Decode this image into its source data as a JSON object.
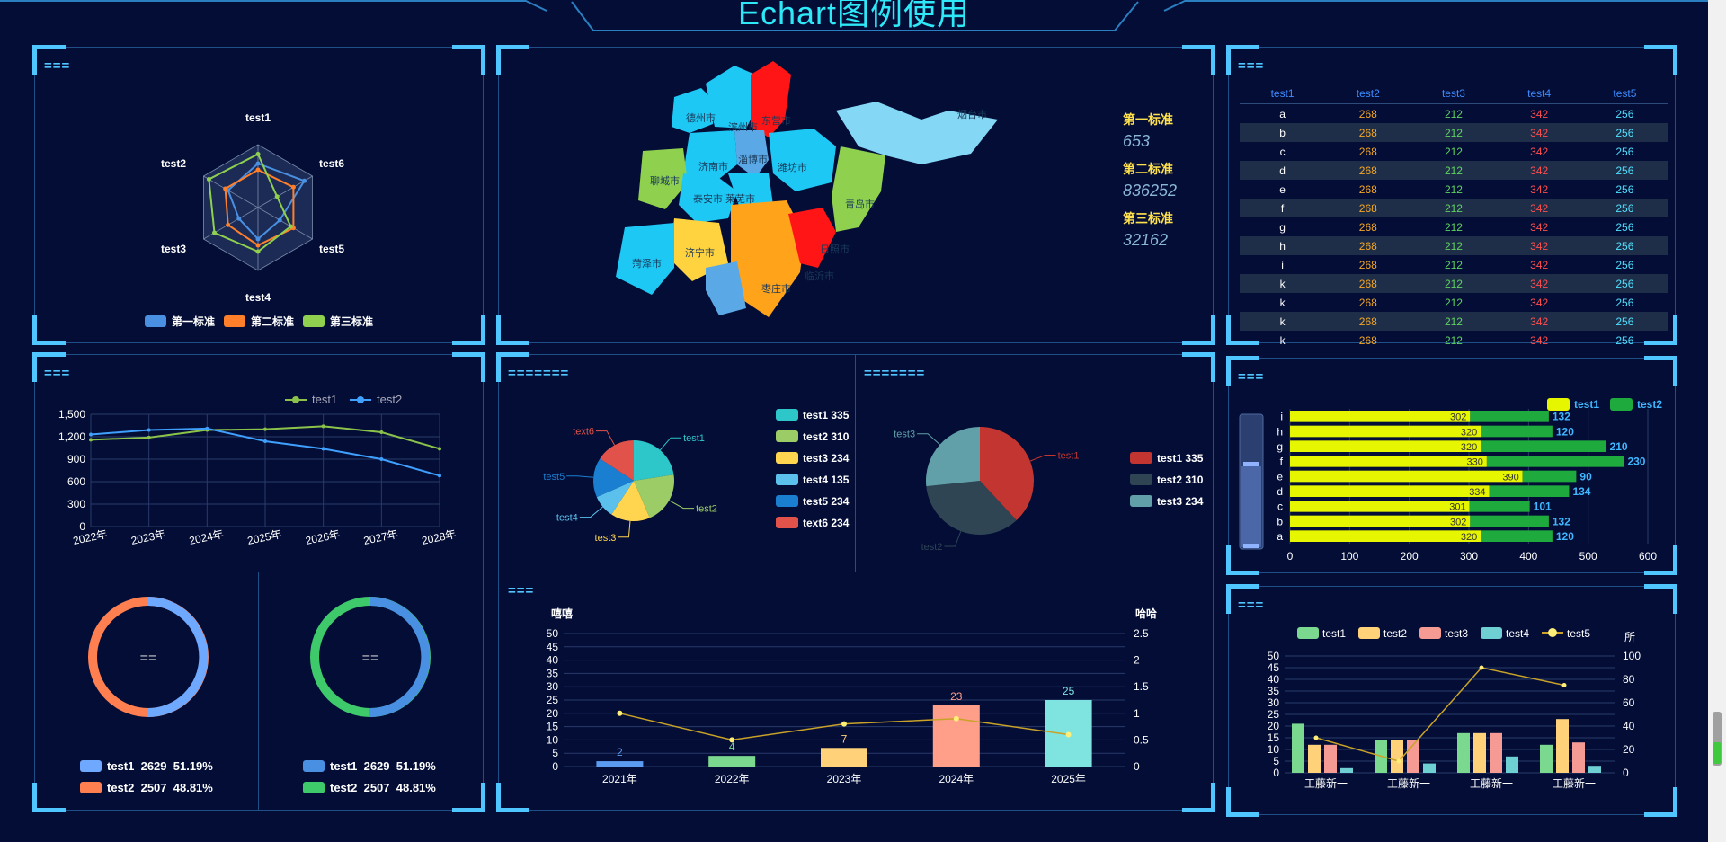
{
  "header": {
    "title": "Echart图例使用"
  },
  "panels": {
    "radar": {
      "title": "===",
      "indicators": [
        "test1",
        "test6",
        "test5",
        "test4",
        "test3",
        "test2"
      ],
      "legend": [
        {
          "name": "第一标准",
          "color": "#4a90e2"
        },
        {
          "name": "第二标准",
          "color": "#ff7f2a"
        },
        {
          "name": "第三标准",
          "color": "#8fd14f"
        }
      ],
      "series": [
        [
          0.7,
          0.85,
          0.4,
          0.5,
          0.35,
          0.55
        ],
        [
          0.6,
          0.65,
          0.65,
          0.6,
          0.55,
          0.6
        ],
        [
          0.85,
          0.35,
          0.6,
          0.7,
          0.8,
          0.9
        ]
      ]
    },
    "map": {
      "legend": [
        {
          "label": "第一标准",
          "value": "653"
        },
        {
          "label": "第二标准",
          "value": "836252"
        },
        {
          "label": "第三标准",
          "value": "32162"
        }
      ],
      "cities": [
        "德州市",
        "滨州市",
        "东营市",
        "淄博市",
        "潍坊市",
        "济南市",
        "聊城市",
        "泰安市",
        "莱芜市",
        "青岛市",
        "济宁市",
        "菏泽市",
        "临沂市",
        "日照市",
        "枣庄市",
        "烟台市"
      ]
    },
    "table": {
      "title": "===",
      "headers": [
        "test1",
        "test2",
        "test3",
        "test4",
        "test5"
      ],
      "rows": [
        [
          "a",
          "268",
          "212",
          "342",
          "256"
        ],
        [
          "b",
          "268",
          "212",
          "342",
          "256"
        ],
        [
          "c",
          "268",
          "212",
          "342",
          "256"
        ],
        [
          "d",
          "268",
          "212",
          "342",
          "256"
        ],
        [
          "e",
          "268",
          "212",
          "342",
          "256"
        ],
        [
          "f",
          "268",
          "212",
          "342",
          "256"
        ],
        [
          "g",
          "268",
          "212",
          "342",
          "256"
        ],
        [
          "h",
          "268",
          "212",
          "342",
          "256"
        ],
        [
          "i",
          "268",
          "212",
          "342",
          "256"
        ],
        [
          "k",
          "268",
          "212",
          "342",
          "256"
        ],
        [
          "k",
          "268",
          "212",
          "342",
          "256"
        ],
        [
          "k",
          "268",
          "212",
          "342",
          "256"
        ],
        [
          "k",
          "268",
          "212",
          "342",
          "256"
        ]
      ]
    },
    "line": {
      "title": "==="
    },
    "pies": {
      "title": "=======",
      "title2": "======="
    },
    "donuts": [
      {
        "center": "==",
        "items": [
          {
            "name": "test1",
            "value": "2629",
            "pct": "51.19%",
            "color": "#6ea8ff"
          },
          {
            "name": "test2",
            "value": "2507",
            "pct": "48.81%",
            "color": "#ff7f50"
          }
        ]
      },
      {
        "center": "==",
        "items": [
          {
            "name": "test1",
            "value": "2629",
            "pct": "51.19%",
            "color": "#4a90e2"
          },
          {
            "name": "test2",
            "value": "2507",
            "pct": "48.81%",
            "color": "#3ec96b"
          }
        ]
      }
    ],
    "bar": {
      "title": "===",
      "ylabel_left": "嘻嘻",
      "ylabel_right": "哈哈"
    },
    "hbar": {
      "title": "==="
    },
    "multibar": {
      "title": "===",
      "unit": "所"
    }
  },
  "chart_data": [
    {
      "type": "radar",
      "indicators": [
        "test1",
        "test6",
        "test5",
        "test4",
        "test3",
        "test2"
      ],
      "series": [
        {
          "name": "第一标准",
          "values": [
            0.7,
            0.85,
            0.4,
            0.5,
            0.35,
            0.55
          ]
        },
        {
          "name": "第二标准",
          "values": [
            0.6,
            0.65,
            0.65,
            0.6,
            0.55,
            0.6
          ]
        },
        {
          "name": "第三标准",
          "values": [
            0.85,
            0.35,
            0.6,
            0.7,
            0.8,
            0.9
          ]
        }
      ]
    },
    {
      "type": "line",
      "categories": [
        "2022年",
        "2023年",
        "2024年",
        "2025年",
        "2026年",
        "2027年",
        "2028年"
      ],
      "ylim": [
        0,
        1500
      ],
      "yticks": [
        0,
        300,
        600,
        900,
        1200,
        1500
      ],
      "series": [
        {
          "name": "test1",
          "color": "#8bc34a",
          "values": [
            1160,
            1190,
            1290,
            1300,
            1340,
            1260,
            1040
          ]
        },
        {
          "name": "test2",
          "color": "#3fa0ff",
          "values": [
            1230,
            1290,
            1310,
            1140,
            1040,
            900,
            680
          ]
        }
      ]
    },
    {
      "type": "pie",
      "series": [
        {
          "name": "test1",
          "value": 335,
          "color": "#2ec7c9"
        },
        {
          "name": "test2",
          "value": 310,
          "color": "#9ccc65"
        },
        {
          "name": "test3",
          "value": 234,
          "color": "#ffd54f"
        },
        {
          "name": "test4",
          "value": 135,
          "color": "#5bc0eb"
        },
        {
          "name": "test5",
          "value": 234,
          "color": "#1a7fd1"
        },
        {
          "name": "text6",
          "value": 234,
          "color": "#e0524a"
        }
      ]
    },
    {
      "type": "pie",
      "series": [
        {
          "name": "test1",
          "value": 335,
          "color": "#c23531"
        },
        {
          "name": "test2",
          "value": 310,
          "color": "#2f4554"
        },
        {
          "name": "test3",
          "value": 234,
          "color": "#61a0a8"
        }
      ]
    },
    {
      "type": "bar",
      "categories": [
        "2021年",
        "2022年",
        "2023年",
        "2024年",
        "2025年"
      ],
      "ylim": [
        0,
        50
      ],
      "y2lim": [
        0,
        2.5
      ],
      "series": [
        {
          "name": "bar",
          "values": [
            2,
            4,
            7,
            23,
            25
          ],
          "colors": [
            "#5b9bf0",
            "#7bd88f",
            "#ffd27a",
            "#ff9f8a",
            "#7fe3e0"
          ]
        },
        {
          "name": "line",
          "values": [
            1,
            0.5,
            0.8,
            0.9,
            0.6
          ],
          "color": "#c9a227"
        }
      ]
    },
    {
      "type": "bar",
      "orientation": "horizontal",
      "categories": [
        "a",
        "b",
        "c",
        "d",
        "e",
        "f",
        "g",
        "h",
        "i"
      ],
      "xlim": [
        0,
        600
      ],
      "series": [
        {
          "name": "test1",
          "color": "#e6f500",
          "values": [
            320,
            302,
            301,
            334,
            390,
            330,
            320,
            320,
            302
          ]
        },
        {
          "name": "test2",
          "color": "#1faa3e",
          "values": [
            120,
            132,
            101,
            134,
            90,
            230,
            210,
            120,
            132
          ]
        }
      ]
    },
    {
      "type": "bar",
      "categories": [
        "工藤新一",
        "工藤新一",
        "工藤新一",
        "工藤新一"
      ],
      "ylim": [
        0,
        50
      ],
      "y2lim": [
        0,
        100
      ],
      "series": [
        {
          "name": "test1",
          "color": "#7bd88f",
          "values": [
            21,
            14,
            17,
            12
          ]
        },
        {
          "name": "test2",
          "color": "#ffd27a",
          "values": [
            12,
            14,
            17,
            23
          ]
        },
        {
          "name": "test3",
          "color": "#f59b93",
          "values": [
            12,
            14,
            17,
            13
          ]
        },
        {
          "name": "test4",
          "color": "#6fd0d3",
          "values": [
            2,
            4,
            7,
            3
          ]
        },
        {
          "name": "test5",
          "color": "#c9a227",
          "values": [
            30,
            10,
            90,
            75
          ]
        }
      ]
    }
  ]
}
